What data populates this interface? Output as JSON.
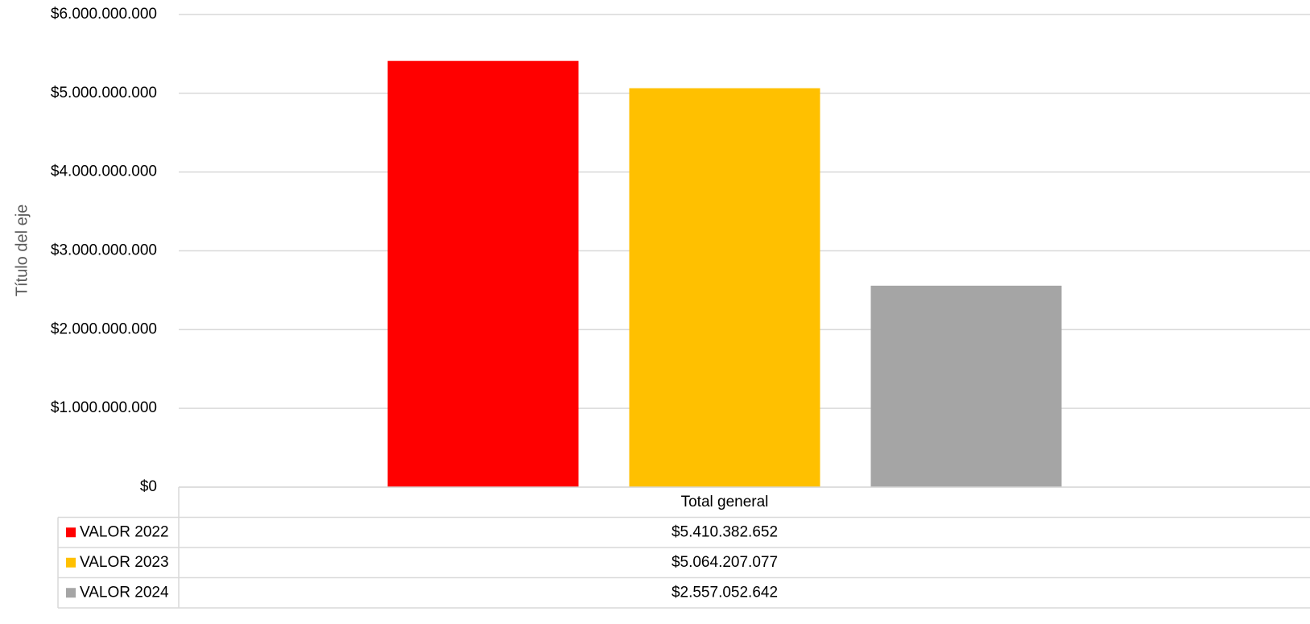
{
  "chart_data": {
    "type": "bar",
    "y_axis_title": "Título del eje",
    "categories": [
      "Total general"
    ],
    "series": [
      {
        "name": "VALOR 2022",
        "color": "#ff0000",
        "values": [
          5410382652
        ],
        "value_labels": [
          "$5.410.382.652"
        ]
      },
      {
        "name": "VALOR 2023",
        "color": "#ffc000",
        "values": [
          5064207077
        ],
        "value_labels": [
          "$5.064.207.077"
        ]
      },
      {
        "name": "VALOR 2024",
        "color": "#a5a5a5",
        "values": [
          2557052642
        ],
        "value_labels": [
          "$2.557.052.642"
        ]
      }
    ],
    "ylim": [
      0,
      6000000000
    ],
    "yticks": [
      {
        "value": 0,
        "label": "$0"
      },
      {
        "value": 1000000000,
        "label": "$1.000.000.000"
      },
      {
        "value": 2000000000,
        "label": "$2.000.000.000"
      },
      {
        "value": 3000000000,
        "label": "$3.000.000.000"
      },
      {
        "value": 4000000000,
        "label": "$4.000.000.000"
      },
      {
        "value": 5000000000,
        "label": "$5.000.000.000"
      },
      {
        "value": 6000000000,
        "label": "$6.000.000.000"
      }
    ],
    "grid": true,
    "legend": "data-table"
  }
}
